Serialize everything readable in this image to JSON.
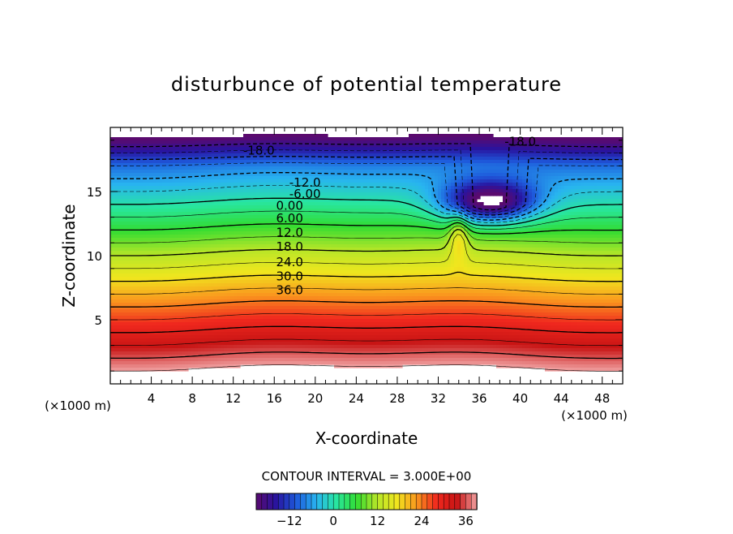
{
  "chart_data": {
    "type": "contour",
    "title": "disturbunce of potential temperature",
    "xlabel": "X-coordinate",
    "ylabel": "Z-coordinate",
    "x_unit": "(×1000 m)",
    "x_unit_right": "(×1000 m)",
    "xlim": [
      0,
      50
    ],
    "ylim": [
      0,
      20
    ],
    "x_ticks": [
      4,
      8,
      12,
      16,
      20,
      24,
      28,
      32,
      36,
      40,
      44,
      48
    ],
    "y_ticks": [
      5,
      10,
      15
    ],
    "contour_interval_text": "CONTOUR INTERVAL = 3.000E+00",
    "contour_interval": 3.0,
    "negative_contours_dashed": true,
    "contour_labels": [
      {
        "text": "-18.0",
        "x": 14.5,
        "y": 18.2
      },
      {
        "text": "-18.0",
        "x": 40.0,
        "y": 18.9
      },
      {
        "text": "-12.0",
        "x": 19.0,
        "y": 15.7
      },
      {
        "text": "-6.00",
        "x": 19.0,
        "y": 14.8
      },
      {
        "text": "0.00",
        "x": 17.5,
        "y": 13.9
      },
      {
        "text": "6.00",
        "x": 17.5,
        "y": 12.9
      },
      {
        "text": "12.0",
        "x": 17.5,
        "y": 11.8
      },
      {
        "text": "18.0",
        "x": 17.5,
        "y": 10.7
      },
      {
        "text": "24.0",
        "x": 17.5,
        "y": 9.5
      },
      {
        "text": "30.0",
        "x": 17.5,
        "y": 8.4
      },
      {
        "text": "36.0",
        "x": 17.5,
        "y": 7.3
      }
    ],
    "colorbar": {
      "range": [
        -21,
        39
      ],
      "ticks": [
        -12,
        0,
        12,
        24,
        36
      ],
      "colors": [
        "#5a0a6e",
        "#2814a0",
        "#1e5adc",
        "#28b4f0",
        "#28e6a0",
        "#32dc32",
        "#b4e628",
        "#f0e61e",
        "#fa961e",
        "#f0281e",
        "#c81414",
        "#f0a0a0"
      ]
    }
  }
}
